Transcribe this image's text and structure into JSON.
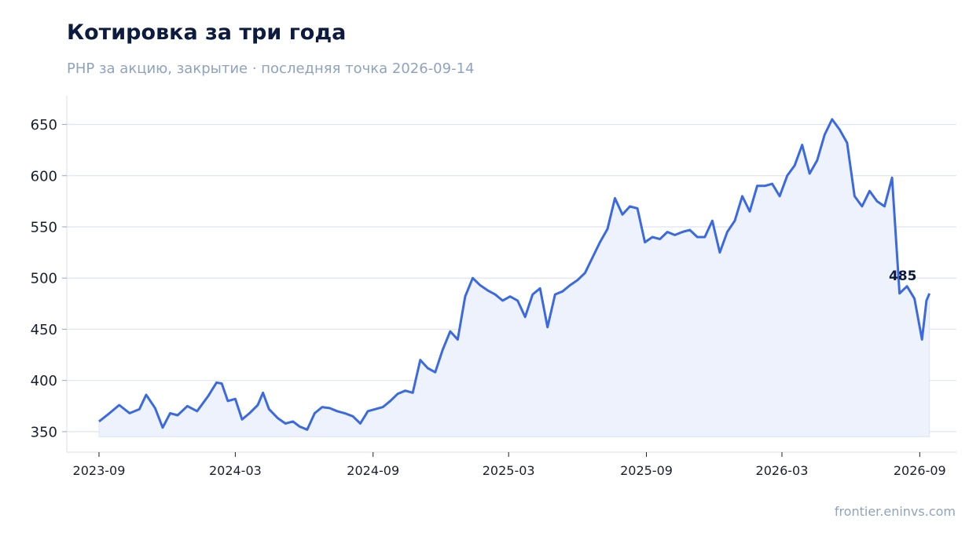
{
  "title": "Котировка за три года",
  "subtitle": "PHP за акцию, закрытие · последняя точка 2026-09-14",
  "footer": "frontier.eninvs.com",
  "colors": {
    "line": "#3b69e0",
    "fill": "#edf2fd",
    "grid": "#dfe4f0",
    "axis": "#dfe4f0"
  },
  "chart_data": {
    "type": "line",
    "title": "Котировка за три года",
    "subtitle": "PHP за акцию, закрытие · последняя точка 2026-09-14",
    "xlabel": "",
    "ylabel": "",
    "x_ticks": [
      "2023-09",
      "2024-03",
      "2024-09",
      "2025-03",
      "2025-09",
      "2026-03",
      "2026-09"
    ],
    "y_ticks": [
      350,
      400,
      450,
      500,
      550,
      600,
      650
    ],
    "ylim": [
      330,
      678
    ],
    "xlim": [
      "2023-07-20",
      "2026-10-20"
    ],
    "grid": "horizontal",
    "last_label": "485",
    "series": [
      {
        "values": [
          [
            "2023-09-01",
            360
          ],
          [
            "2023-09-15",
            368
          ],
          [
            "2023-09-28",
            376
          ],
          [
            "2023-10-12",
            368
          ],
          [
            "2023-10-25",
            372
          ],
          [
            "2023-11-03",
            386
          ],
          [
            "2023-11-15",
            373
          ],
          [
            "2023-11-25",
            354
          ],
          [
            "2023-12-05",
            368
          ],
          [
            "2023-12-15",
            366
          ],
          [
            "2023-12-28",
            375
          ],
          [
            "2024-01-10",
            370
          ],
          [
            "2024-01-25",
            385
          ],
          [
            "2024-02-05",
            398
          ],
          [
            "2024-02-12",
            397
          ],
          [
            "2024-02-20",
            380
          ],
          [
            "2024-03-01",
            382
          ],
          [
            "2024-03-10",
            362
          ],
          [
            "2024-03-20",
            368
          ],
          [
            "2024-03-31",
            376
          ],
          [
            "2024-04-07",
            388
          ],
          [
            "2024-04-15",
            372
          ],
          [
            "2024-04-27",
            363
          ],
          [
            "2024-05-07",
            358
          ],
          [
            "2024-05-17",
            360
          ],
          [
            "2024-05-26",
            355
          ],
          [
            "2024-06-05",
            352
          ],
          [
            "2024-06-15",
            368
          ],
          [
            "2024-06-25",
            374
          ],
          [
            "2024-07-05",
            373
          ],
          [
            "2024-07-15",
            370
          ],
          [
            "2024-07-25",
            368
          ],
          [
            "2024-08-05",
            365
          ],
          [
            "2024-08-15",
            358
          ],
          [
            "2024-08-25",
            370
          ],
          [
            "2024-09-04",
            372
          ],
          [
            "2024-09-14",
            374
          ],
          [
            "2024-09-24",
            380
          ],
          [
            "2024-10-04",
            387
          ],
          [
            "2024-10-14",
            390
          ],
          [
            "2024-10-24",
            388
          ],
          [
            "2024-11-03",
            420
          ],
          [
            "2024-11-13",
            412
          ],
          [
            "2024-11-23",
            408
          ],
          [
            "2024-12-03",
            430
          ],
          [
            "2024-12-13",
            448
          ],
          [
            "2024-12-23",
            440
          ],
          [
            "2025-01-02",
            482
          ],
          [
            "2025-01-12",
            500
          ],
          [
            "2025-01-22",
            493
          ],
          [
            "2025-02-01",
            488
          ],
          [
            "2025-02-11",
            484
          ],
          [
            "2025-02-21",
            478
          ],
          [
            "2025-03-03",
            482
          ],
          [
            "2025-03-13",
            478
          ],
          [
            "2025-03-23",
            462
          ],
          [
            "2025-04-02",
            484
          ],
          [
            "2025-04-12",
            490
          ],
          [
            "2025-04-22",
            452
          ],
          [
            "2025-05-02",
            484
          ],
          [
            "2025-05-12",
            487
          ],
          [
            "2025-05-22",
            493
          ],
          [
            "2025-06-01",
            498
          ],
          [
            "2025-06-11",
            505
          ],
          [
            "2025-06-21",
            520
          ],
          [
            "2025-07-01",
            535
          ],
          [
            "2025-07-11",
            548
          ],
          [
            "2025-07-21",
            578
          ],
          [
            "2025-07-31",
            562
          ],
          [
            "2025-08-10",
            570
          ],
          [
            "2025-08-20",
            568
          ],
          [
            "2025-08-30",
            535
          ],
          [
            "2025-09-09",
            540
          ],
          [
            "2025-09-19",
            538
          ],
          [
            "2025-09-29",
            545
          ],
          [
            "2025-10-09",
            542
          ],
          [
            "2025-10-19",
            545
          ],
          [
            "2025-10-29",
            547
          ],
          [
            "2025-11-08",
            540
          ],
          [
            "2025-11-18",
            540
          ],
          [
            "2025-11-28",
            556
          ],
          [
            "2025-12-08",
            525
          ],
          [
            "2025-12-18",
            545
          ],
          [
            "2025-12-28",
            556
          ],
          [
            "2026-01-07",
            580
          ],
          [
            "2026-01-17",
            565
          ],
          [
            "2026-01-27",
            590
          ],
          [
            "2026-02-06",
            590
          ],
          [
            "2026-02-16",
            592
          ],
          [
            "2026-02-26",
            580
          ],
          [
            "2026-03-08",
            600
          ],
          [
            "2026-03-18",
            610
          ],
          [
            "2026-03-28",
            630
          ],
          [
            "2026-04-07",
            602
          ],
          [
            "2026-04-17",
            615
          ],
          [
            "2026-04-27",
            640
          ],
          [
            "2026-05-07",
            655
          ],
          [
            "2026-05-17",
            645
          ],
          [
            "2026-05-27",
            632
          ],
          [
            "2026-06-06",
            580
          ],
          [
            "2026-06-16",
            570
          ],
          [
            "2026-06-26",
            585
          ],
          [
            "2026-07-06",
            575
          ],
          [
            "2026-07-16",
            570
          ],
          [
            "2026-07-26",
            598
          ],
          [
            "2026-08-05",
            485
          ],
          [
            "2026-08-15",
            492
          ],
          [
            "2026-08-25",
            480
          ],
          [
            "2026-09-04",
            440
          ],
          [
            "2026-09-10",
            478
          ],
          [
            "2026-09-14",
            485
          ]
        ]
      }
    ]
  }
}
